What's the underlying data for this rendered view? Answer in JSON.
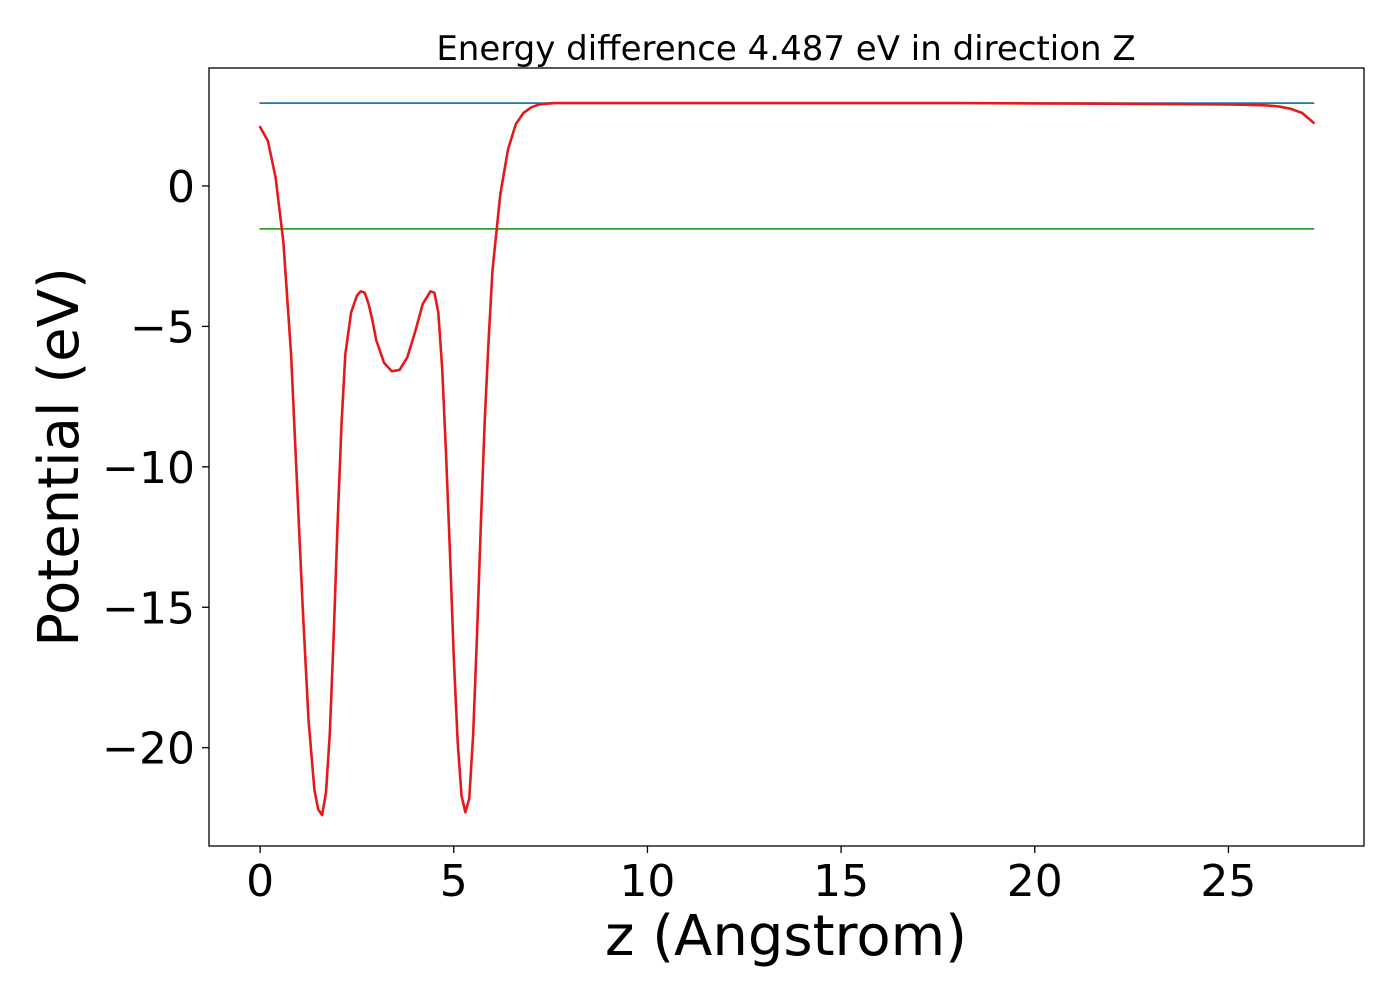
{
  "chart_data": {
    "type": "line",
    "title": "Energy difference 4.487 eV in direction Z",
    "xlabel": "z (Angstrom)",
    "ylabel": "Potential (eV)",
    "xlim": [
      -1.32,
      28.5
    ],
    "ylim": [
      -23.5,
      4.2
    ],
    "grid": false,
    "legend": "none",
    "x_ticks": [
      0,
      5,
      10,
      15,
      20,
      25
    ],
    "y_ticks": [
      -20,
      -15,
      -10,
      -5,
      0
    ],
    "x_tick_labels": [
      "0",
      "5",
      "10",
      "15",
      "20",
      "25"
    ],
    "y_tick_labels": [
      "−20",
      "−15",
      "−10",
      "−5",
      "0"
    ],
    "series": [
      {
        "color": "#1f77b4",
        "x": [
          0,
          27.2
        ],
        "y": [
          2.95,
          2.95
        ]
      },
      {
        "color": "#2ca02c",
        "x": [
          0,
          27.2
        ],
        "y": [
          -1.53,
          -1.53
        ]
      },
      {
        "color": "#e31a1c",
        "x": [
          0,
          0.2,
          0.4,
          0.6,
          0.8,
          0.95,
          1.1,
          1.25,
          1.4,
          1.5,
          1.6,
          1.7,
          1.8,
          1.9,
          2.0,
          2.1,
          2.2,
          2.35,
          2.5,
          2.6,
          2.7,
          2.8,
          2.9,
          3.0,
          3.2,
          3.4,
          3.6,
          3.8,
          4.0,
          4.2,
          4.4,
          4.5,
          4.6,
          4.7,
          4.8,
          4.9,
          5.0,
          5.1,
          5.2,
          5.3,
          5.4,
          5.5,
          5.6,
          5.7,
          5.8,
          5.9,
          6.0,
          6.2,
          6.4,
          6.6,
          6.8,
          7.0,
          7.2,
          7.4,
          7.6,
          7.8,
          8.0,
          8.5,
          9.0,
          10.0,
          12.0,
          15.0,
          18.0,
          20.0,
          22.0,
          24.0,
          25.0,
          25.5,
          26.0,
          26.3,
          26.6,
          26.9,
          27.2
        ],
        "y": [
          2.1,
          1.6,
          0.3,
          -2.0,
          -6.0,
          -10.5,
          -15.0,
          -19.0,
          -21.5,
          -22.2,
          -22.4,
          -21.6,
          -19.5,
          -16.0,
          -12.0,
          -8.5,
          -6.0,
          -4.5,
          -3.9,
          -3.75,
          -3.8,
          -4.2,
          -4.8,
          -5.5,
          -6.3,
          -6.6,
          -6.55,
          -6.1,
          -5.2,
          -4.2,
          -3.75,
          -3.8,
          -4.5,
          -6.5,
          -9.5,
          -13.0,
          -16.8,
          -19.8,
          -21.7,
          -22.3,
          -21.8,
          -19.5,
          -16.0,
          -12.0,
          -8.3,
          -5.5,
          -3.0,
          -0.3,
          1.3,
          2.2,
          2.6,
          2.8,
          2.9,
          2.93,
          2.95,
          2.95,
          2.95,
          2.95,
          2.95,
          2.95,
          2.95,
          2.95,
          2.95,
          2.94,
          2.93,
          2.91,
          2.9,
          2.89,
          2.87,
          2.83,
          2.75,
          2.6,
          2.25
        ]
      }
    ]
  }
}
